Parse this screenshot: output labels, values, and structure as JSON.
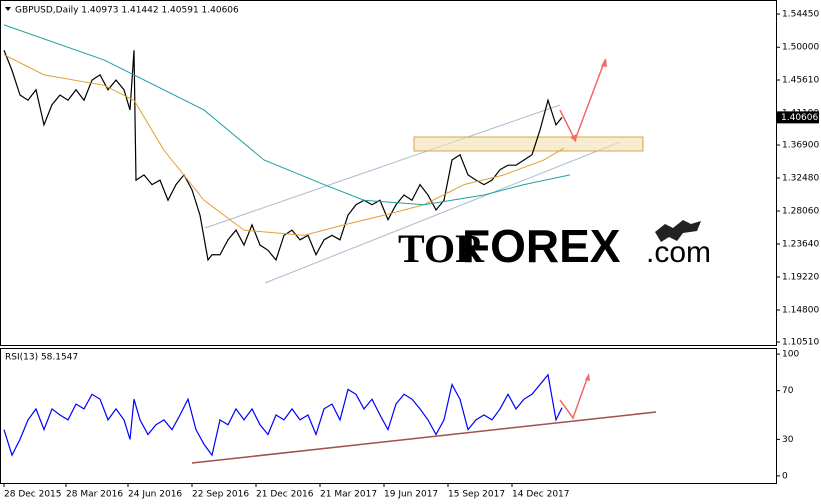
{
  "chart_data": [
    {
      "type": "line",
      "title": "GBPUSD,Daily  1.40973 1.41442 1.40591 1.40606",
      "xlim": [
        -4,
        772
      ],
      "ylim": [
        1.1011,
        1.5633
      ],
      "yticks": [
        {
          "value": 1.5445,
          "label": "1.54450"
        },
        {
          "value": 1.5,
          "label": "1.50000"
        },
        {
          "value": 1.4561,
          "label": "1.45610"
        },
        {
          "value": 1.4119,
          "label": "1.41190"
        },
        {
          "value": 1.369,
          "label": "1.36900"
        },
        {
          "value": 1.3248,
          "label": "1.32480"
        },
        {
          "value": 1.2806,
          "label": "1.28060"
        },
        {
          "value": 1.2364,
          "label": "1.23640"
        },
        {
          "value": 1.1922,
          "label": "1.19220"
        },
        {
          "value": 1.148,
          "label": "1.14800"
        },
        {
          "value": 1.1051,
          "label": "1.10510"
        }
      ],
      "last_value": 1.40606,
      "watermark": {
        "part1": "TOR",
        "part2": "FOREX",
        "part3": ".com"
      },
      "series": [
        {
          "color": "#000000",
          "x": [
            0,
            8,
            16,
            24,
            32,
            40,
            48,
            56,
            64,
            72,
            80,
            88,
            96,
            104,
            112,
            120,
            126,
            130,
            132,
            140,
            148,
            156,
            164,
            172,
            180,
            188,
            196,
            204,
            208,
            216,
            224,
            232,
            240,
            248,
            256,
            264,
            272,
            280,
            288,
            296,
            304,
            312,
            320,
            328,
            336,
            344,
            352,
            360,
            368,
            376,
            384,
            392,
            400,
            408,
            416,
            424,
            432,
            440,
            448,
            456,
            464,
            472,
            480,
            488,
            496,
            504,
            512,
            520,
            528,
            536,
            544,
            552,
            558
          ],
          "values": [
            1.496,
            1.469,
            1.436,
            1.429,
            1.443,
            1.396,
            1.423,
            1.436,
            1.429,
            1.443,
            1.429,
            1.456,
            1.463,
            1.443,
            1.456,
            1.443,
            1.416,
            1.496,
            1.322,
            1.329,
            1.316,
            1.322,
            1.295,
            1.316,
            1.329,
            1.309,
            1.275,
            1.215,
            1.222,
            1.222,
            1.242,
            1.255,
            1.235,
            1.262,
            1.235,
            1.228,
            1.215,
            1.248,
            1.255,
            1.242,
            1.248,
            1.222,
            1.242,
            1.248,
            1.242,
            1.275,
            1.289,
            1.295,
            1.289,
            1.295,
            1.269,
            1.289,
            1.302,
            1.295,
            1.316,
            1.302,
            1.282,
            1.295,
            1.349,
            1.356,
            1.329,
            1.322,
            1.316,
            1.322,
            1.336,
            1.342,
            1.342,
            1.349,
            1.356,
            1.389,
            1.429,
            1.396,
            1.406
          ]
        },
        {
          "color": "#e0a030",
          "x": [
            0,
            40,
            100,
            130,
            160,
            200,
            240,
            300,
            340,
            380,
            420,
            460,
            500,
            540,
            560
          ],
          "values": [
            1.49,
            1.463,
            1.449,
            1.429,
            1.362,
            1.295,
            1.255,
            1.248,
            1.262,
            1.275,
            1.289,
            1.316,
            1.329,
            1.349,
            1.365
          ]
        },
        {
          "color": "#20a0a0",
          "x": [
            0,
            100,
            200,
            260,
            320,
            360,
            420,
            480,
            520,
            566
          ],
          "values": [
            1.53,
            1.483,
            1.416,
            1.349,
            1.316,
            1.295,
            1.289,
            1.302,
            1.316,
            1.329
          ]
        }
      ]
    },
    {
      "type": "line",
      "title": "RSI(13) 58.1547",
      "xlim": [
        -4,
        772
      ],
      "ylim": [
        -5.8,
        105
      ],
      "yticks": [
        100,
        70,
        30,
        0
      ],
      "xticks": [
        {
          "value": 0,
          "label": "28 Dec 2015"
        },
        {
          "value": 62,
          "label": "28 Mar 2016"
        },
        {
          "value": 124,
          "label": "24 Jun 2016"
        },
        {
          "value": 188,
          "label": "22 Sep 2016"
        },
        {
          "value": 252,
          "label": "21 Dec 2016"
        },
        {
          "value": 316,
          "label": "21 Mar 2017"
        },
        {
          "value": 380,
          "label": "19 Jun 2017"
        },
        {
          "value": 444,
          "label": "15 Sep 2017"
        },
        {
          "value": 508,
          "label": "14 Dec 2017"
        }
      ],
      "series": [
        {
          "color": "#0000ff",
          "x": [
            0,
            8,
            16,
            24,
            32,
            40,
            48,
            56,
            64,
            72,
            80,
            88,
            96,
            104,
            112,
            120,
            126,
            130,
            136,
            144,
            152,
            160,
            168,
            176,
            184,
            192,
            200,
            208,
            216,
            224,
            232,
            240,
            248,
            256,
            264,
            272,
            280,
            288,
            296,
            304,
            312,
            320,
            328,
            336,
            344,
            352,
            360,
            368,
            376,
            384,
            392,
            400,
            408,
            416,
            424,
            432,
            440,
            448,
            456,
            464,
            472,
            480,
            488,
            496,
            504,
            512,
            520,
            528,
            536,
            544,
            552,
            558
          ],
          "values": [
            38,
            17,
            30,
            46,
            55,
            38,
            55,
            50,
            46,
            59,
            55,
            67,
            63,
            46,
            55,
            46,
            30,
            63,
            46,
            34,
            42,
            46,
            38,
            50,
            63,
            38,
            26,
            17,
            46,
            42,
            55,
            46,
            55,
            42,
            34,
            50,
            46,
            55,
            46,
            50,
            34,
            55,
            59,
            46,
            71,
            67,
            55,
            63,
            50,
            38,
            59,
            67,
            63,
            55,
            46,
            34,
            46,
            75,
            63,
            38,
            46,
            50,
            46,
            55,
            67,
            55,
            63,
            67,
            75,
            83,
            46,
            56
          ]
        }
      ]
    }
  ]
}
